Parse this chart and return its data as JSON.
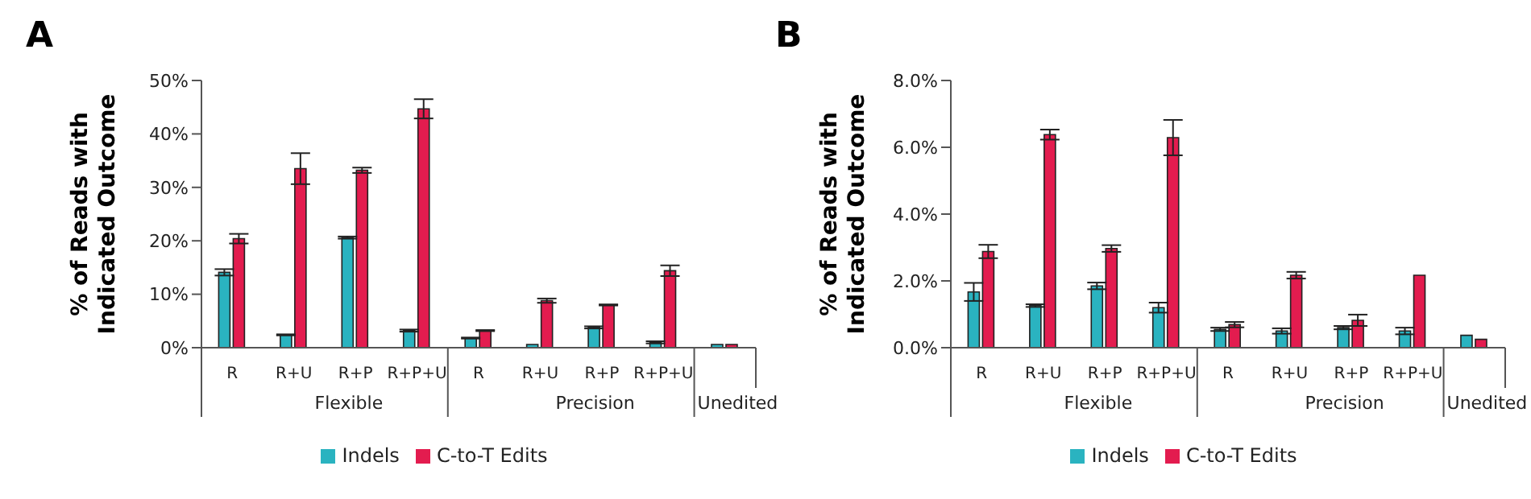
{
  "chart_data": [
    {
      "type": "bar",
      "title": "A",
      "ylabel": "% of Reads with Indicated Outcome",
      "categories": [
        "R",
        "R+U",
        "R+P",
        "R+P+U",
        "R",
        "R+U",
        "R+P",
        "R+P+U",
        null
      ],
      "annotations": [
        "Flexible",
        "Precision",
        "Unedited"
      ],
      "series": [
        {
          "name": "Indels",
          "color": "#2ab3c0",
          "values": [
            14.1,
            2.4,
            20.6,
            3.2,
            1.8,
            0.5,
            3.8,
            1.0,
            0.2
          ],
          "errors": [
            0.6,
            0.1,
            0.2,
            0.2,
            0.1,
            null,
            0.2,
            0.2,
            null
          ]
        },
        {
          "name": "C-to-T Edits",
          "color": "#e31c4f",
          "values": [
            20.4,
            33.5,
            33.2,
            44.7,
            3.2,
            8.8,
            8.0,
            14.4,
            0.2
          ],
          "errors": [
            0.9,
            2.9,
            0.5,
            1.8,
            0.1,
            0.4,
            0.1,
            1.0,
            null
          ]
        }
      ],
      "ylim": [
        0,
        50
      ],
      "yticks": [
        {
          "value": 0,
          "label": "0%"
        },
        {
          "value": 10,
          "label": "10%"
        },
        {
          "value": 20,
          "label": "20%"
        },
        {
          "value": 30,
          "label": "30%"
        },
        {
          "value": 40,
          "label": "40%"
        },
        {
          "value": 50,
          "label": "50%"
        }
      ],
      "grid": false,
      "legend": "bottom"
    },
    {
      "type": "bar",
      "title": "B",
      "ylabel": "% of Reads with Indicated Outcome",
      "categories": [
        "R",
        "R+U",
        "R+P",
        "R+P+U",
        "R",
        "R+U",
        "R+P",
        "R+P+U",
        null
      ],
      "annotations": [
        "Flexible",
        "Precision",
        "Unedited"
      ],
      "series": [
        {
          "name": "Indels",
          "color": "#2ab3c0",
          "values": [
            1.67,
            1.26,
            1.85,
            1.2,
            0.55,
            0.5,
            0.6,
            0.5,
            0.37
          ],
          "errors": [
            0.27,
            0.04,
            0.1,
            0.15,
            0.05,
            0.08,
            0.05,
            0.1,
            null
          ]
        },
        {
          "name": "C-to-T Edits",
          "color": "#e31c4f",
          "values": [
            2.88,
            6.38,
            2.97,
            6.29,
            0.69,
            2.17,
            0.82,
            2.17,
            0.25
          ],
          "errors": [
            0.2,
            0.15,
            0.1,
            0.53,
            0.08,
            0.1,
            0.17,
            null,
            null
          ]
        }
      ],
      "ylim": [
        0,
        8
      ],
      "yticks": [
        {
          "value": 0,
          "label": "0.0%"
        },
        {
          "value": 2,
          "label": "2.0%"
        },
        {
          "value": 4,
          "label": "4.0%"
        },
        {
          "value": 6,
          "label": "6.0%"
        },
        {
          "value": 8,
          "label": "8.0%"
        }
      ],
      "grid": false,
      "legend": "bottom"
    }
  ]
}
